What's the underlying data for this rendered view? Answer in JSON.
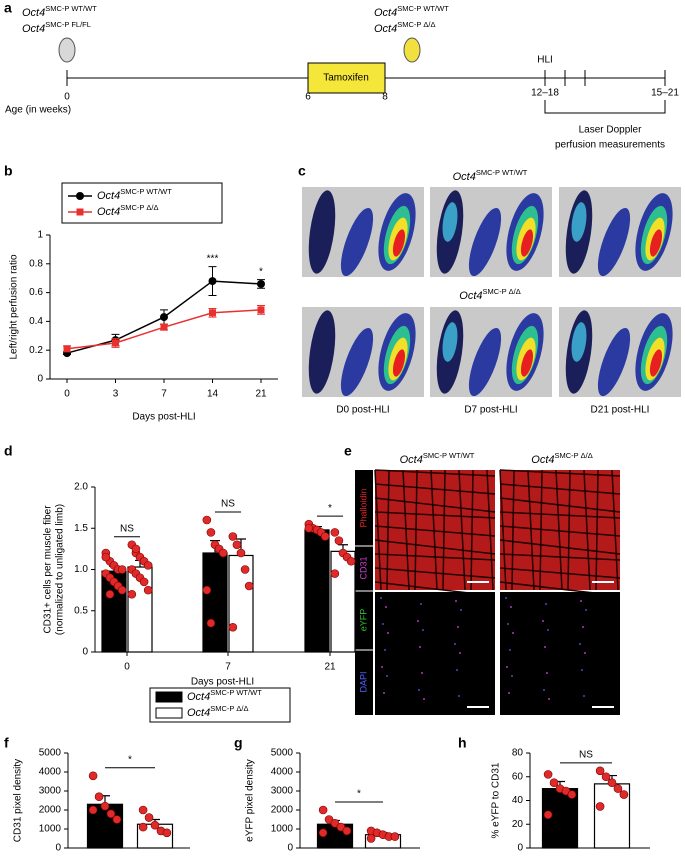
{
  "panel_labels": [
    "a",
    "b",
    "c",
    "d",
    "e",
    "f",
    "g",
    "h"
  ],
  "timeline": {
    "start_groups": [
      {
        "name": "Oct4",
        "genotype": "SMC-P WT/WT"
      },
      {
        "name": "Oct4",
        "genotype": "SMC-P FL/FL"
      }
    ],
    "end_groups": [
      {
        "name": "Oct4",
        "genotype": "SMC-P WT/WT"
      },
      {
        "name": "Oct4",
        "genotype": "SMC-P Δ/Δ"
      }
    ],
    "ticks": [
      "0",
      "6",
      "8",
      "12–18",
      "15–21"
    ],
    "axis_label": "Age (in weeks)",
    "treatment": "Tamoxifen",
    "event": "HLI",
    "measurement": [
      "Laser Doppler",
      "perfusion measurements"
    ]
  },
  "images_c": {
    "rows": [
      {
        "name": "Oct4",
        "genotype": "SMC-P WT/WT"
      },
      {
        "name": "Oct4",
        "genotype": "SMC-P Δ/Δ"
      }
    ],
    "columns": [
      "D0 post-HLI",
      "D7 post-HLI",
      "D21 post-HLI"
    ]
  },
  "images_e": {
    "columns": [
      {
        "name": "Oct4",
        "genotype": "SMC-P WT/WT"
      },
      {
        "name": "Oct4",
        "genotype": "SMC-P Δ/Δ"
      }
    ],
    "channels": [
      "Phalloidin",
      "CD31",
      "eYFP",
      "DAPI"
    ]
  },
  "chart_data": [
    {
      "type": "line",
      "categories": [
        "0",
        "3",
        "7",
        "14",
        "21"
      ],
      "xlabel": "Days post-HLI",
      "ylabel": [
        "Left/right perfusion ratio"
      ],
      "ylim": [
        0,
        1
      ],
      "yticks": [
        0,
        0.2,
        0.4,
        0.6,
        0.8,
        1
      ],
      "legend": "top-left",
      "series": [
        {
          "name": "Oct4",
          "genotype": "SMC-P WT/WT",
          "color": "#000000",
          "marker": "circle",
          "values": [
            0.18,
            0.27,
            0.43,
            0.68,
            0.66
          ],
          "errors": [
            0.01,
            0.04,
            0.05,
            0.1,
            0.03
          ]
        },
        {
          "name": "Oct4",
          "genotype": "SMC-P Δ/Δ",
          "color": "#e8312f",
          "marker": "square",
          "values": [
            0.21,
            0.25,
            0.36,
            0.46,
            0.48
          ],
          "errors": [
            0.02,
            0.03,
            0.02,
            0.03,
            0.03
          ]
        }
      ],
      "annotations": [
        null,
        null,
        null,
        "***",
        "*"
      ]
    },
    {
      "type": "bar",
      "categories": [
        "0",
        "7",
        "21"
      ],
      "xlabel": "Days post-HLI",
      "ylabel": [
        "CD31+ cells per muscle fiber",
        "(normalized to unligated limb)"
      ],
      "ylim": [
        0,
        2
      ],
      "yticks": [
        0,
        0.5,
        {
          "value": 1,
          "label": "1.0"
        },
        1.5,
        {
          "value": 2,
          "label": "2.0"
        }
      ],
      "legend": "bottom",
      "point_color": "#e02a2a",
      "series": [
        {
          "name": "Oct4",
          "genotype": "SMC-P WT/WT",
          "color": "#000000",
          "values": [
            0.98,
            1.2,
            1.48
          ],
          "errors": [
            0.06,
            0.15,
            0.04
          ],
          "points": [
            [
              1.2,
              1.1,
              1.05,
              1.0,
              1.0,
              0.95,
              0.9,
              0.85,
              0.8,
              0.75,
              1.15,
              0.7
            ],
            [
              1.6,
              1.45,
              1.3,
              1.25,
              1.2,
              0.75,
              0.35
            ],
            [
              1.55,
              1.5,
              1.48,
              1.45,
              1.4,
              1.5
            ]
          ]
        },
        {
          "name": "Oct4",
          "genotype": "SMC-P Δ/Δ",
          "color": "#ffffff",
          "values": [
            1.03,
            1.17,
            1.22
          ],
          "errors": [
            0.08,
            0.2,
            0.08
          ],
          "points": [
            [
              1.3,
              1.2,
              1.15,
              1.1,
              1.05,
              1.0,
              0.95,
              0.9,
              0.85,
              0.75,
              0.7,
              1.25
            ],
            [
              1.4,
              1.3,
              1.2,
              1.0,
              0.8,
              0.3
            ],
            [
              1.45,
              1.35,
              1.2,
              1.15,
              1.1,
              0.95
            ]
          ]
        }
      ],
      "annotations": [
        "NS",
        "NS",
        "*"
      ]
    },
    {
      "type": "bar",
      "ylabel": [
        "CD31 pixel density"
      ],
      "ylim": [
        0,
        5000
      ],
      "yticks": [
        0,
        1000,
        2000,
        3000,
        4000,
        5000
      ],
      "point_color": "#e02a2a",
      "series": [
        {
          "color": "#000000",
          "values": [
            2300
          ],
          "errors": [
            450
          ],
          "points": [
            [
              3800,
              2700,
              2200,
              1800,
              1500,
              2000
            ]
          ]
        },
        {
          "color": "#ffffff",
          "values": [
            1250
          ],
          "errors": [
            250
          ],
          "points": [
            [
              2000,
              1600,
              1200,
              900,
              800,
              1100
            ]
          ]
        }
      ],
      "annotations": [
        "*"
      ]
    },
    {
      "type": "bar",
      "ylabel": [
        "eYFP pixel density"
      ],
      "ylim": [
        0,
        5000
      ],
      "yticks": [
        0,
        1000,
        2000,
        3000,
        4000,
        5000
      ],
      "point_color": "#e02a2a",
      "series": [
        {
          "color": "#000000",
          "values": [
            1250
          ],
          "errors": [
            200
          ],
          "points": [
            [
              2000,
              1500,
              1300,
              1100,
              900,
              800
            ]
          ]
        },
        {
          "color": "#ffffff",
          "values": [
            700
          ],
          "errors": [
            100
          ],
          "points": [
            [
              900,
              800,
              700,
              600,
              600,
              500
            ]
          ]
        }
      ],
      "annotations": [
        "*"
      ]
    },
    {
      "type": "bar",
      "ylabel": [
        "% eYFP to CD31"
      ],
      "ylim": [
        0,
        80
      ],
      "yticks": [
        0,
        20,
        40,
        60,
        80
      ],
      "point_color": "#e02a2a",
      "series": [
        {
          "color": "#000000",
          "values": [
            50
          ],
          "errors": [
            6
          ],
          "points": [
            [
              62,
              55,
              50,
              48,
              45,
              28
            ]
          ]
        },
        {
          "color": "#ffffff",
          "values": [
            54
          ],
          "errors": [
            7
          ],
          "points": [
            [
              65,
              60,
              55,
              50,
              45,
              35
            ]
          ]
        }
      ],
      "annotations": [
        "NS"
      ]
    }
  ]
}
